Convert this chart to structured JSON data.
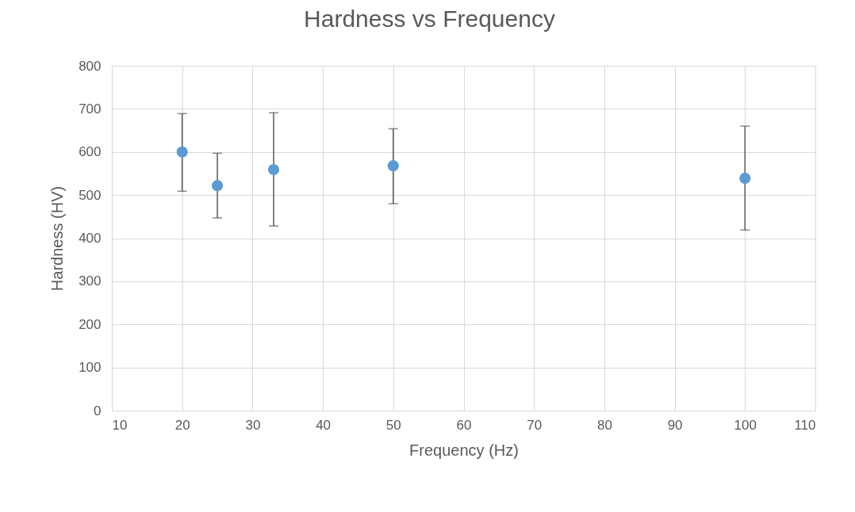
{
  "chart_data": {
    "type": "scatter",
    "title": "Hardness vs Frequency",
    "xlabel": "Frequency (Hz)",
    "ylabel": "Hardness (HV)",
    "x": [
      20,
      25,
      33,
      50,
      100
    ],
    "series": [
      {
        "color": "#5b9bd5",
        "values": [
          600,
          522,
          559,
          568,
          539
        ],
        "errors": [
          [
            509,
            689
          ],
          [
            447,
            597
          ],
          [
            428,
            691
          ],
          [
            480,
            654
          ],
          [
            419,
            660
          ]
        ]
      }
    ],
    "xlim": [
      10,
      110
    ],
    "xticks": [
      10,
      20,
      30,
      40,
      50,
      60,
      70,
      80,
      90,
      100,
      110
    ],
    "ylim": [
      0,
      800
    ],
    "yticks": [
      0,
      100,
      200,
      300,
      400,
      500,
      600,
      700,
      800
    ],
    "grid": true,
    "marker": "circle"
  }
}
